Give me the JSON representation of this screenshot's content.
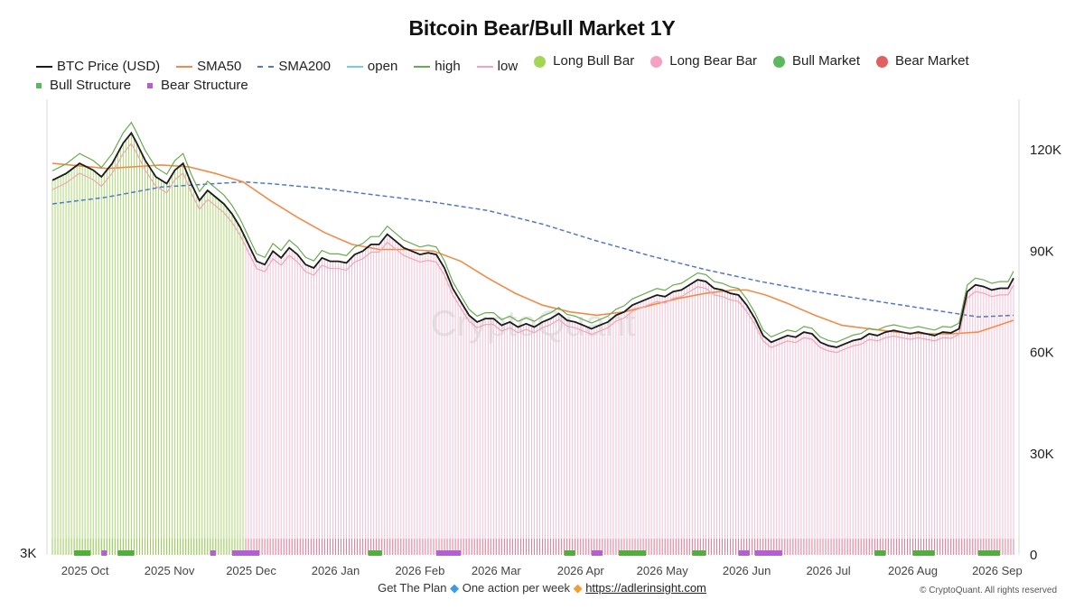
{
  "chart_data": {
    "type": "line",
    "title": "Bitcoin Bear/Bull Market 1Y",
    "y_right_ticks": [
      "120K",
      "90K",
      "60K",
      "30K",
      "0"
    ],
    "y_left_tick": "3K",
    "ylim": [
      0,
      135000
    ],
    "x_ticks": [
      "2025 Oct",
      "2025 Nov",
      "2025 Dec",
      "2026 Jan",
      "2026 Feb",
      "2026 Mar",
      "2026 Apr",
      "2026 May",
      "2026 Jun",
      "2026 Jul",
      "2026 Aug",
      "2026 Sep"
    ],
    "x_tick_days": [
      12,
      43,
      73,
      104,
      135,
      163,
      194,
      224,
      255,
      285,
      316,
      347
    ],
    "x_range_days": [
      0,
      353
    ],
    "regime_switch_day": 70,
    "bear_period_color": "#f4bfd0",
    "bull_period_color": "#a9d86e",
    "watermark": "CryptoQuant",
    "series": [
      {
        "name": "BTC Price (USD)",
        "color": "#1a1a1a",
        "style": "solid",
        "points": [
          [
            0,
            111000
          ],
          [
            5,
            113000
          ],
          [
            10,
            116000
          ],
          [
            15,
            114000
          ],
          [
            18,
            112000
          ],
          [
            22,
            116000
          ],
          [
            26,
            122000
          ],
          [
            29,
            125000
          ],
          [
            31,
            122000
          ],
          [
            34,
            117000
          ],
          [
            38,
            112000
          ],
          [
            42,
            110000
          ],
          [
            45,
            114000
          ],
          [
            48,
            116000
          ],
          [
            51,
            110000
          ],
          [
            54,
            105000
          ],
          [
            57,
            108000
          ],
          [
            60,
            106000
          ],
          [
            63,
            104000
          ],
          [
            66,
            101000
          ],
          [
            69,
            97000
          ],
          [
            72,
            92000
          ],
          [
            75,
            87000
          ],
          [
            78,
            86000
          ],
          [
            81,
            90000
          ],
          [
            84,
            88000
          ],
          [
            87,
            91000
          ],
          [
            90,
            89000
          ],
          [
            93,
            86000
          ],
          [
            96,
            85000
          ],
          [
            99,
            88000
          ],
          [
            102,
            87000
          ],
          [
            105,
            87000
          ],
          [
            108,
            86500
          ],
          [
            111,
            89000
          ],
          [
            114,
            90000
          ],
          [
            117,
            92000
          ],
          [
            120,
            92000
          ],
          [
            123,
            95000
          ],
          [
            126,
            93000
          ],
          [
            129,
            91000
          ],
          [
            132,
            90000
          ],
          [
            135,
            89000
          ],
          [
            138,
            89500
          ],
          [
            141,
            89000
          ],
          [
            144,
            85000
          ],
          [
            147,
            79000
          ],
          [
            150,
            75000
          ],
          [
            153,
            71000
          ],
          [
            156,
            69000
          ],
          [
            159,
            70000
          ],
          [
            162,
            70000
          ],
          [
            165,
            68000
          ],
          [
            168,
            69000
          ],
          [
            171,
            67500
          ],
          [
            174,
            68500
          ],
          [
            177,
            67500
          ],
          [
            180,
            69000
          ],
          [
            183,
            70000
          ],
          [
            186,
            71500
          ],
          [
            189,
            69500
          ],
          [
            192,
            69000
          ],
          [
            195,
            68000
          ],
          [
            198,
            67000
          ],
          [
            201,
            68000
          ],
          [
            204,
            69000
          ],
          [
            207,
            71000
          ],
          [
            210,
            72000
          ],
          [
            213,
            74000
          ],
          [
            216,
            75000
          ],
          [
            219,
            76000
          ],
          [
            222,
            77000
          ],
          [
            225,
            76500
          ],
          [
            228,
            78000
          ],
          [
            231,
            78500
          ],
          [
            234,
            80000
          ],
          [
            237,
            81500
          ],
          [
            240,
            81000
          ],
          [
            243,
            79000
          ],
          [
            246,
            78500
          ],
          [
            249,
            77500
          ],
          [
            252,
            77000
          ],
          [
            255,
            74000
          ],
          [
            258,
            70000
          ],
          [
            261,
            65000
          ],
          [
            264,
            63000
          ],
          [
            267,
            64000
          ],
          [
            270,
            65000
          ],
          [
            273,
            64500
          ],
          [
            276,
            66000
          ],
          [
            279,
            65500
          ],
          [
            282,
            63000
          ],
          [
            285,
            62000
          ],
          [
            288,
            61500
          ],
          [
            291,
            62500
          ],
          [
            294,
            63500
          ],
          [
            297,
            64000
          ],
          [
            300,
            65500
          ],
          [
            303,
            65000
          ],
          [
            306,
            66000
          ],
          [
            309,
            66500
          ],
          [
            312,
            66000
          ],
          [
            315,
            65500
          ],
          [
            318,
            66000
          ],
          [
            321,
            65500
          ],
          [
            324,
            65000
          ],
          [
            327,
            66000
          ],
          [
            330,
            65800
          ],
          [
            333,
            67000
          ],
          [
            336,
            78000
          ],
          [
            339,
            80000
          ],
          [
            342,
            79500
          ],
          [
            345,
            78500
          ],
          [
            348,
            79000
          ],
          [
            351,
            79000
          ],
          [
            353,
            82000
          ]
        ]
      },
      {
        "name": "SMA50",
        "color": "#ef8c4a",
        "style": "solid",
        "points": [
          [
            0,
            116000
          ],
          [
            20,
            114500
          ],
          [
            40,
            115500
          ],
          [
            50,
            115000
          ],
          [
            60,
            113000
          ],
          [
            70,
            110500
          ],
          [
            80,
            105000
          ],
          [
            90,
            100000
          ],
          [
            100,
            95500
          ],
          [
            110,
            92000
          ],
          [
            120,
            90500
          ],
          [
            130,
            90500
          ],
          [
            140,
            90000
          ],
          [
            150,
            87000
          ],
          [
            160,
            82000
          ],
          [
            170,
            77500
          ],
          [
            180,
            74000
          ],
          [
            190,
            72000
          ],
          [
            200,
            71000
          ],
          [
            210,
            72000
          ],
          [
            220,
            74000
          ],
          [
            230,
            76000
          ],
          [
            240,
            77500
          ],
          [
            250,
            78500
          ],
          [
            255,
            78500
          ],
          [
            262,
            77000
          ],
          [
            270,
            74500
          ],
          [
            280,
            71000
          ],
          [
            290,
            68000
          ],
          [
            300,
            67000
          ],
          [
            310,
            66000
          ],
          [
            320,
            65500
          ],
          [
            330,
            65500
          ],
          [
            340,
            66000
          ],
          [
            353,
            69500
          ]
        ]
      },
      {
        "name": "SMA200",
        "color": "#4f79c4",
        "style": "dashed",
        "points": [
          [
            0,
            104000
          ],
          [
            20,
            106000
          ],
          [
            40,
            109000
          ],
          [
            60,
            110000
          ],
          [
            70,
            110500
          ],
          [
            80,
            110000
          ],
          [
            100,
            108500
          ],
          [
            120,
            106500
          ],
          [
            140,
            104500
          ],
          [
            160,
            102000
          ],
          [
            180,
            98000
          ],
          [
            200,
            93000
          ],
          [
            220,
            88500
          ],
          [
            240,
            84500
          ],
          [
            260,
            81000
          ],
          [
            280,
            78000
          ],
          [
            300,
            75500
          ],
          [
            320,
            73000
          ],
          [
            340,
            70500
          ],
          [
            353,
            71000
          ]
        ]
      },
      {
        "name": "open",
        "color": "#7cc6ec",
        "style": "solid",
        "points": []
      },
      {
        "name": "high",
        "color": "#6aaa50",
        "style": "solid",
        "points": []
      },
      {
        "name": "low",
        "color": "#f0a5b8",
        "style": "solid",
        "points": []
      }
    ],
    "markers": [
      {
        "name": "Long Bull Bar",
        "color": "#a3d655",
        "type": "dot"
      },
      {
        "name": "Long Bear Bar",
        "color": "#f3a2c4",
        "type": "dot"
      },
      {
        "name": "Bull Market",
        "color": "#5cb85c",
        "type": "dot"
      },
      {
        "name": "Bear Market",
        "color": "#e06060",
        "type": "dot"
      },
      {
        "name": "Bull Structure",
        "color": "#5cb85c",
        "type": "square"
      },
      {
        "name": "Bear Structure",
        "color": "#b25fd1",
        "type": "square"
      }
    ],
    "structure_bars": [
      {
        "kind": "bull",
        "range": [
          8,
          14
        ]
      },
      {
        "kind": "bull",
        "range": [
          24,
          30
        ]
      },
      {
        "kind": "bear",
        "range": [
          18,
          20
        ]
      },
      {
        "kind": "bear",
        "range": [
          58,
          60
        ]
      },
      {
        "kind": "bear",
        "range": [
          66,
          76
        ]
      },
      {
        "kind": "bull",
        "range": [
          116,
          121
        ]
      },
      {
        "kind": "bear",
        "range": [
          141,
          150
        ]
      },
      {
        "kind": "bull",
        "range": [
          188,
          192
        ]
      },
      {
        "kind": "bull",
        "range": [
          208,
          218
        ]
      },
      {
        "kind": "bear",
        "range": [
          198,
          202
        ]
      },
      {
        "kind": "bull",
        "range": [
          235,
          240
        ]
      },
      {
        "kind": "bear",
        "range": [
          252,
          256
        ]
      },
      {
        "kind": "bear",
        "range": [
          258,
          268
        ]
      },
      {
        "kind": "bull",
        "range": [
          302,
          306
        ]
      },
      {
        "kind": "bull",
        "range": [
          316,
          324
        ]
      },
      {
        "kind": "bull",
        "range": [
          340,
          348
        ]
      }
    ]
  },
  "legend": [
    {
      "label": "BTC Price (USD)",
      "kind": "line",
      "color": "#1a1a1a"
    },
    {
      "label": "SMA50",
      "kind": "line",
      "color": "#ef8c4a"
    },
    {
      "label": "SMA200",
      "kind": "dash",
      "color": "#4f79c4"
    },
    {
      "label": "open",
      "kind": "line",
      "color": "#7cc6ec"
    },
    {
      "label": "high",
      "kind": "line",
      "color": "#6aaa50"
    },
    {
      "label": "low",
      "kind": "line",
      "color": "#f0a5b8"
    },
    {
      "label": "Long Bull Bar",
      "kind": "dot",
      "color": "#a3d655"
    },
    {
      "label": "Long Bear Bar",
      "kind": "dot",
      "color": "#f3a2c4"
    },
    {
      "label": "Bull Market",
      "kind": "dot",
      "color": "#5cb85c"
    },
    {
      "label": "Bear Market",
      "kind": "dot",
      "color": "#e06060"
    },
    {
      "label": "Bull Structure",
      "kind": "square",
      "color": "#5cb85c"
    },
    {
      "label": "Bear Structure",
      "kind": "square",
      "color": "#b25fd1"
    }
  ],
  "footer": {
    "text1": "Get The Plan",
    "text2": "One action per week",
    "link": "https://adlerinsight.com",
    "gem_icon": "blue-diamond-icon",
    "orange_icon": "orange-diamond-icon"
  },
  "copyright": "© CryptoQuant. All rights reserved"
}
